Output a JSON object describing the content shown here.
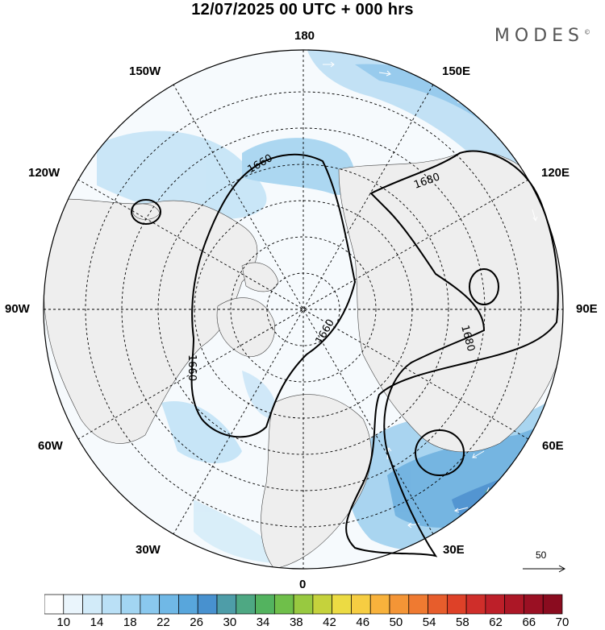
{
  "title": "12/07/2025  00 UTC  + 000 hrs",
  "brand": "MODES",
  "brand_mark": "©",
  "longitude_labels": {
    "n180": "180",
    "e150": "150E",
    "e120": "120E",
    "e90": "90E",
    "e60": "60E",
    "e30": "30E",
    "s0": "0",
    "w30": "30W",
    "w60": "60W",
    "w90": "90W",
    "w120": "120W",
    "w150": "150W"
  },
  "contours": {
    "c1660_a": "1660",
    "c1660_b": "1660",
    "c1660_c": "1660",
    "c1680_a": "1680",
    "c1680_b": "1680"
  },
  "wind_scale_label": "50",
  "colorbar": {
    "colors": [
      "#ffffff",
      "#eaf5fc",
      "#d2ebf9",
      "#bae0f6",
      "#a2d5f2",
      "#8ac8ee",
      "#70b8e6",
      "#58a6dc",
      "#4891cf",
      "#4e9da8",
      "#4ea883",
      "#53b35f",
      "#6fbf4a",
      "#98c940",
      "#c5d23c",
      "#ecdb43",
      "#f6cd42",
      "#f8b23c",
      "#f49536",
      "#ef7a31",
      "#e75d2c",
      "#de4128",
      "#cf2e2a",
      "#bd1f29",
      "#ac1726",
      "#9a1023",
      "#8a0c1f"
    ],
    "tick_labels": [
      "10",
      "14",
      "18",
      "22",
      "26",
      "30",
      "34",
      "38",
      "42",
      "46",
      "50",
      "54",
      "58",
      "62",
      "66",
      "70"
    ]
  },
  "colors": {
    "land": "#eeeeee",
    "grid": "#000000",
    "contour": "#000000"
  }
}
